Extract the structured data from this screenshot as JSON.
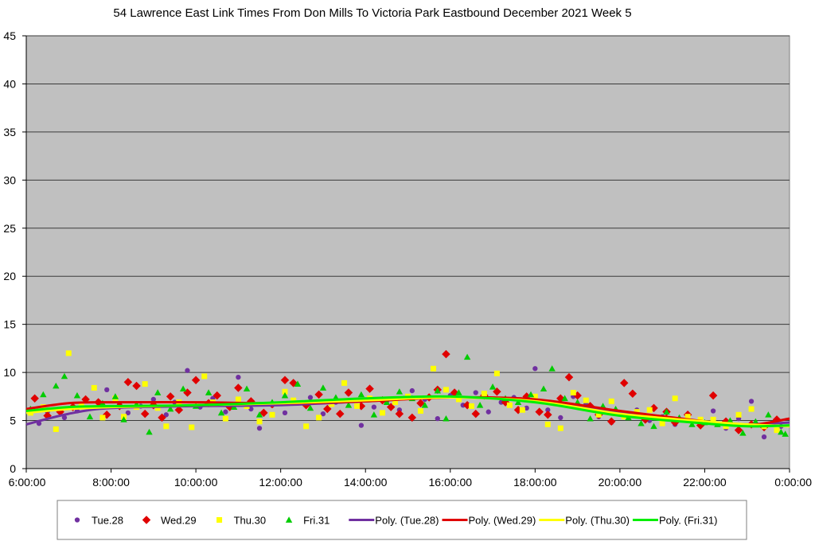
{
  "chart_data": {
    "type": "scatter",
    "title": "54 Lawrence East Link Times From Don Mills To Victoria Park Eastbound December 2021  Week 5",
    "xlabel": "",
    "ylabel": "",
    "xlim": [
      6,
      24
    ],
    "ylim": [
      0,
      45
    ],
    "x_ticks": [
      6,
      8,
      10,
      12,
      14,
      16,
      18,
      20,
      22,
      24
    ],
    "x_tick_labels": [
      "6:00:00",
      "8:00:00",
      "10:00:00",
      "12:00:00",
      "14:00:00",
      "16:00:00",
      "18:00:00",
      "20:00:00",
      "22:00:00",
      "0:00:00"
    ],
    "y_ticks": [
      0,
      5,
      10,
      15,
      20,
      25,
      30,
      35,
      40,
      45
    ],
    "y_tick_labels": [
      "0",
      "5",
      "10",
      "15",
      "20",
      "25",
      "30",
      "35",
      "40",
      "45"
    ],
    "grid": true,
    "plot_background": "#c0c0c0",
    "legend_position": "bottom",
    "series": [
      {
        "name": "Tue.28",
        "marker": "circle",
        "color": "#7030a0",
        "points": [
          [
            6.3,
            4.7
          ],
          [
            6.5,
            5.9
          ],
          [
            6.9,
            5.3
          ],
          [
            7.2,
            6.0
          ],
          [
            7.6,
            6.3
          ],
          [
            7.9,
            8.2
          ],
          [
            8.2,
            6.7
          ],
          [
            8.4,
            5.8
          ],
          [
            8.7,
            6.5
          ],
          [
            9.0,
            7.2
          ],
          [
            9.3,
            5.6
          ],
          [
            9.5,
            6.9
          ],
          [
            9.8,
            10.2
          ],
          [
            10.1,
            6.4
          ],
          [
            10.4,
            7.3
          ],
          [
            10.7,
            5.9
          ],
          [
            11.0,
            9.5
          ],
          [
            11.3,
            6.2
          ],
          [
            11.5,
            4.2
          ],
          [
            11.8,
            6.6
          ],
          [
            12.1,
            5.8
          ],
          [
            12.4,
            6.8
          ],
          [
            12.7,
            7.4
          ],
          [
            13.0,
            5.7
          ],
          [
            13.3,
            6.9
          ],
          [
            13.6,
            7.8
          ],
          [
            13.9,
            4.5
          ],
          [
            14.2,
            6.4
          ],
          [
            14.5,
            7.0
          ],
          [
            14.8,
            6.1
          ],
          [
            15.1,
            8.1
          ],
          [
            15.4,
            7.2
          ],
          [
            15.7,
            5.2
          ],
          [
            16.0,
            7.6
          ],
          [
            16.3,
            6.6
          ],
          [
            16.6,
            7.9
          ],
          [
            16.9,
            5.9
          ],
          [
            17.2,
            6.9
          ],
          [
            17.5,
            7.4
          ],
          [
            17.8,
            6.3
          ],
          [
            18.0,
            10.4
          ],
          [
            18.3,
            6.1
          ],
          [
            18.6,
            5.3
          ],
          [
            18.9,
            7.5
          ],
          [
            19.2,
            6.7
          ],
          [
            19.5,
            5.4
          ],
          [
            19.8,
            4.8
          ],
          [
            20.1,
            5.6
          ],
          [
            20.4,
            6.1
          ],
          [
            20.7,
            5.0
          ],
          [
            21.0,
            5.4
          ],
          [
            21.3,
            4.6
          ],
          [
            21.6,
            5.6
          ],
          [
            21.9,
            4.5
          ],
          [
            22.2,
            6.0
          ],
          [
            22.5,
            4.2
          ],
          [
            22.8,
            5.2
          ],
          [
            23.1,
            7.0
          ],
          [
            23.4,
            3.3
          ],
          [
            23.6,
            4.7
          ],
          [
            23.8,
            4.4
          ]
        ]
      },
      {
        "name": "Wed.29",
        "marker": "diamond",
        "color": "#e00000",
        "points": [
          [
            6.2,
            7.3
          ],
          [
            6.5,
            5.5
          ],
          [
            6.8,
            5.9
          ],
          [
            7.1,
            6.4
          ],
          [
            7.4,
            7.2
          ],
          [
            7.7,
            6.9
          ],
          [
            7.9,
            5.6
          ],
          [
            8.2,
            6.5
          ],
          [
            8.4,
            9.0
          ],
          [
            8.6,
            8.6
          ],
          [
            8.8,
            5.7
          ],
          [
            9.0,
            6.6
          ],
          [
            9.2,
            5.3
          ],
          [
            9.4,
            7.5
          ],
          [
            9.6,
            6.1
          ],
          [
            9.8,
            7.9
          ],
          [
            10.0,
            9.2
          ],
          [
            10.3,
            6.8
          ],
          [
            10.5,
            7.6
          ],
          [
            10.8,
            6.4
          ],
          [
            11.0,
            8.4
          ],
          [
            11.3,
            7.0
          ],
          [
            11.6,
            5.8
          ],
          [
            11.8,
            6.7
          ],
          [
            12.1,
            9.2
          ],
          [
            12.3,
            8.9
          ],
          [
            12.6,
            6.6
          ],
          [
            12.9,
            7.7
          ],
          [
            13.1,
            6.2
          ],
          [
            13.4,
            5.7
          ],
          [
            13.6,
            7.9
          ],
          [
            13.9,
            6.5
          ],
          [
            14.1,
            8.3
          ],
          [
            14.4,
            7.1
          ],
          [
            14.6,
            6.4
          ],
          [
            14.8,
            5.7
          ],
          [
            15.1,
            5.3
          ],
          [
            15.3,
            6.8
          ],
          [
            15.5,
            7.4
          ],
          [
            15.7,
            8.2
          ],
          [
            15.9,
            11.9
          ],
          [
            16.1,
            7.9
          ],
          [
            16.4,
            6.6
          ],
          [
            16.6,
            5.7
          ],
          [
            16.8,
            7.6
          ],
          [
            17.1,
            8.0
          ],
          [
            17.3,
            6.9
          ],
          [
            17.6,
            6.1
          ],
          [
            17.8,
            7.5
          ],
          [
            18.1,
            5.9
          ],
          [
            18.3,
            5.6
          ],
          [
            18.6,
            7.3
          ],
          [
            18.8,
            9.5
          ],
          [
            19.0,
            7.6
          ],
          [
            19.3,
            6.5
          ],
          [
            19.5,
            5.6
          ],
          [
            19.8,
            4.9
          ],
          [
            20.1,
            8.9
          ],
          [
            20.3,
            7.8
          ],
          [
            20.6,
            5.1
          ],
          [
            20.8,
            6.3
          ],
          [
            21.1,
            5.9
          ],
          [
            21.3,
            4.8
          ],
          [
            21.6,
            5.6
          ],
          [
            21.9,
            4.5
          ],
          [
            22.2,
            7.6
          ],
          [
            22.5,
            4.9
          ],
          [
            22.8,
            4.0
          ],
          [
            23.1,
            4.6
          ],
          [
            23.4,
            4.3
          ],
          [
            23.7,
            5.1
          ]
        ]
      },
      {
        "name": "Thu.30",
        "marker": "square",
        "color": "#ffff00",
        "points": [
          [
            6.1,
            5.8
          ],
          [
            6.4,
            6.4
          ],
          [
            6.7,
            4.1
          ],
          [
            7.0,
            12.0
          ],
          [
            7.3,
            6.6
          ],
          [
            7.6,
            8.4
          ],
          [
            7.8,
            5.3
          ],
          [
            8.1,
            7.3
          ],
          [
            8.3,
            5.4
          ],
          [
            8.6,
            6.4
          ],
          [
            8.8,
            8.8
          ],
          [
            9.1,
            6.3
          ],
          [
            9.3,
            4.4
          ],
          [
            9.6,
            6.9
          ],
          [
            9.9,
            4.3
          ],
          [
            10.2,
            9.6
          ],
          [
            10.4,
            6.9
          ],
          [
            10.7,
            5.2
          ],
          [
            11.0,
            7.2
          ],
          [
            11.2,
            6.5
          ],
          [
            11.5,
            4.9
          ],
          [
            11.8,
            5.6
          ],
          [
            12.1,
            8.0
          ],
          [
            12.3,
            7.1
          ],
          [
            12.6,
            4.4
          ],
          [
            12.9,
            5.3
          ],
          [
            13.2,
            6.7
          ],
          [
            13.5,
            8.9
          ],
          [
            13.8,
            6.5
          ],
          [
            14.1,
            7.3
          ],
          [
            14.4,
            5.8
          ],
          [
            14.7,
            6.9
          ],
          [
            15.0,
            7.5
          ],
          [
            15.3,
            6.0
          ],
          [
            15.6,
            10.4
          ],
          [
            15.9,
            8.2
          ],
          [
            16.2,
            7.2
          ],
          [
            16.5,
            6.5
          ],
          [
            16.8,
            7.8
          ],
          [
            17.1,
            9.9
          ],
          [
            17.4,
            6.6
          ],
          [
            17.7,
            6.1
          ],
          [
            18.0,
            7.5
          ],
          [
            18.3,
            4.6
          ],
          [
            18.6,
            4.2
          ],
          [
            18.9,
            7.9
          ],
          [
            19.2,
            7.1
          ],
          [
            19.5,
            5.6
          ],
          [
            19.8,
            7.0
          ],
          [
            20.1,
            5.4
          ],
          [
            20.4,
            5.9
          ],
          [
            20.7,
            6.1
          ],
          [
            21.0,
            4.7
          ],
          [
            21.3,
            7.3
          ],
          [
            21.6,
            5.4
          ],
          [
            21.9,
            5.1
          ],
          [
            22.2,
            5.1
          ],
          [
            22.5,
            4.4
          ],
          [
            22.8,
            5.6
          ],
          [
            23.1,
            6.2
          ],
          [
            23.4,
            4.4
          ],
          [
            23.7,
            4.0
          ]
        ]
      },
      {
        "name": "Fri.31",
        "marker": "triangle",
        "color": "#00cc00",
        "points": [
          [
            6.1,
            6.2
          ],
          [
            6.4,
            7.7
          ],
          [
            6.7,
            8.6
          ],
          [
            6.9,
            9.6
          ],
          [
            7.2,
            7.6
          ],
          [
            7.5,
            5.4
          ],
          [
            7.8,
            6.8
          ],
          [
            8.1,
            7.5
          ],
          [
            8.3,
            5.1
          ],
          [
            8.6,
            6.7
          ],
          [
            8.9,
            3.8
          ],
          [
            9.1,
            7.9
          ],
          [
            9.4,
            6.2
          ],
          [
            9.7,
            8.3
          ],
          [
            10.0,
            6.5
          ],
          [
            10.3,
            7.9
          ],
          [
            10.6,
            5.8
          ],
          [
            10.9,
            6.4
          ],
          [
            11.2,
            8.3
          ],
          [
            11.5,
            5.6
          ],
          [
            11.8,
            6.9
          ],
          [
            12.1,
            7.6
          ],
          [
            12.4,
            8.8
          ],
          [
            12.7,
            6.3
          ],
          [
            13.0,
            8.4
          ],
          [
            13.3,
            7.4
          ],
          [
            13.6,
            6.6
          ],
          [
            13.9,
            7.7
          ],
          [
            14.2,
            5.6
          ],
          [
            14.5,
            6.9
          ],
          [
            14.8,
            8.0
          ],
          [
            15.1,
            7.3
          ],
          [
            15.4,
            6.6
          ],
          [
            15.7,
            8.1
          ],
          [
            15.9,
            5.2
          ],
          [
            16.2,
            7.9
          ],
          [
            16.4,
            11.6
          ],
          [
            16.7,
            6.6
          ],
          [
            17.0,
            8.5
          ],
          [
            17.3,
            7.3
          ],
          [
            17.6,
            6.9
          ],
          [
            17.9,
            7.7
          ],
          [
            18.2,
            8.3
          ],
          [
            18.4,
            10.4
          ],
          [
            18.7,
            7.3
          ],
          [
            19.0,
            6.9
          ],
          [
            19.3,
            5.2
          ],
          [
            19.6,
            6.5
          ],
          [
            19.9,
            6.2
          ],
          [
            20.2,
            5.3
          ],
          [
            20.5,
            4.7
          ],
          [
            20.8,
            4.4
          ],
          [
            21.1,
            5.9
          ],
          [
            21.4,
            5.3
          ],
          [
            21.7,
            4.6
          ],
          [
            22.0,
            4.8
          ],
          [
            22.3,
            4.6
          ],
          [
            22.6,
            5.0
          ],
          [
            22.9,
            3.7
          ],
          [
            23.2,
            4.9
          ],
          [
            23.5,
            5.6
          ],
          [
            23.8,
            3.8
          ],
          [
            23.9,
            3.6
          ]
        ]
      },
      {
        "name": "Poly. (Tue.28)",
        "type": "line",
        "color": "#7030a0",
        "points": [
          [
            6,
            4.6
          ],
          [
            7,
            5.7
          ],
          [
            8,
            6.3
          ],
          [
            10,
            6.5
          ],
          [
            12,
            6.6
          ],
          [
            14,
            7.0
          ],
          [
            16,
            7.4
          ],
          [
            18,
            7.1
          ],
          [
            20,
            5.8
          ],
          [
            22,
            4.8
          ],
          [
            23,
            4.6
          ],
          [
            24,
            4.8
          ]
        ]
      },
      {
        "name": "Poly. (Wed.29)",
        "type": "line",
        "color": "#e00000",
        "points": [
          [
            6,
            6.2
          ],
          [
            7,
            6.8
          ],
          [
            8,
            6.9
          ],
          [
            10,
            6.9
          ],
          [
            12,
            6.8
          ],
          [
            14,
            7.0
          ],
          [
            16,
            7.4
          ],
          [
            18,
            7.2
          ],
          [
            20,
            6.0
          ],
          [
            22,
            4.9
          ],
          [
            23,
            4.5
          ],
          [
            24,
            5.2
          ]
        ]
      },
      {
        "name": "Poly. (Thu.30)",
        "type": "line",
        "color": "#ffff00",
        "points": [
          [
            6,
            5.8
          ],
          [
            7,
            6.2
          ],
          [
            8,
            6.4
          ],
          [
            10,
            6.6
          ],
          [
            12,
            6.8
          ],
          [
            14,
            7.1
          ],
          [
            16,
            7.4
          ],
          [
            18,
            7.0
          ],
          [
            20,
            5.7
          ],
          [
            22,
            4.9
          ],
          [
            23,
            4.6
          ],
          [
            24,
            4.4
          ]
        ]
      },
      {
        "name": "Poly. (Fri.31)",
        "type": "line",
        "color": "#00ee00",
        "points": [
          [
            6,
            6.0
          ],
          [
            7,
            6.4
          ],
          [
            8,
            6.5
          ],
          [
            10,
            6.6
          ],
          [
            12,
            6.9
          ],
          [
            14,
            7.3
          ],
          [
            16,
            7.5
          ],
          [
            18,
            6.9
          ],
          [
            20,
            5.5
          ],
          [
            22,
            4.7
          ],
          [
            23,
            4.4
          ],
          [
            24,
            4.5
          ]
        ]
      }
    ]
  }
}
